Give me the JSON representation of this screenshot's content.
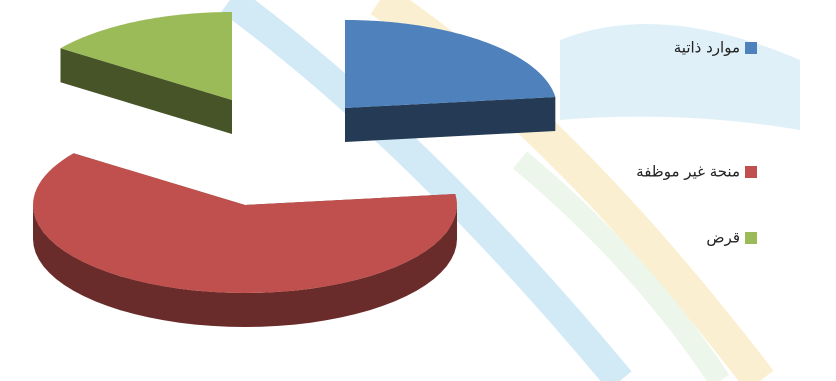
{
  "chart_data": {
    "type": "pie",
    "categories": [
      "موارد ذاتية",
      "منحة غير موظفة",
      "قرض"
    ],
    "values": [
      23,
      62,
      15
    ],
    "colors": [
      "#4f81bd",
      "#c0504d",
      "#9bbb59"
    ]
  }
}
